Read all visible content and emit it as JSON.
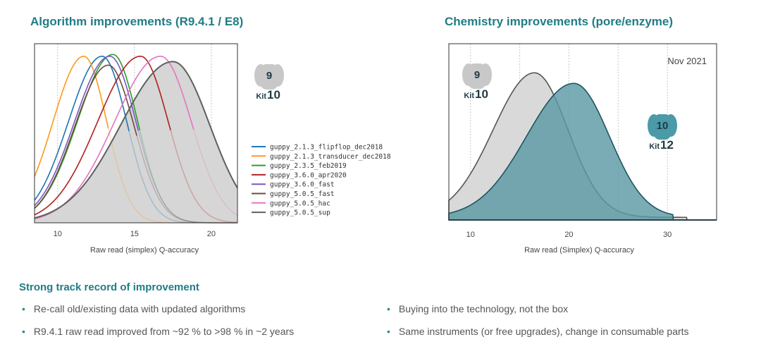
{
  "left_title": "Algorithm improvements (R9.4.1 / E8)",
  "right_title": "Chemistry improvements (pore/enzyme)",
  "left_badge": {
    "number": "9",
    "kit_word": "Kit",
    "kit_number": "10",
    "color": "#c8c8c8"
  },
  "right_badge_old": {
    "number": "9",
    "kit_word": "Kit",
    "kit_number": "10",
    "color": "#c8c8c8"
  },
  "right_badge_new": {
    "number": "10",
    "kit_word": "Kit",
    "kit_number": "12",
    "color": "#4a9aa8"
  },
  "right_annotation": "Nov 2021",
  "section_title": "Strong track record of improvement",
  "bullets_left": [
    "Re-call old/existing data with updated algorithms",
    "R9.4.1 raw read improved from ~92 % to >98 % in ~2 years"
  ],
  "bullets_right": [
    "Buying into the technology, not the box",
    "Same instruments (or free upgrades), change in consumable parts"
  ],
  "chart_data": [
    {
      "type": "line",
      "title": "Algorithm improvements (R9.4.1 / E8)",
      "xlabel": "Raw read (simplex) Q-accuracy",
      "ylabel": "",
      "xlim": [
        8.5,
        21.7
      ],
      "xticks": [
        10,
        15,
        20
      ],
      "grid": true,
      "legend_position": "right",
      "series": [
        {
          "name": "guppy_2.1.3_flipflop_dec2018",
          "color": "#1f77b4",
          "peak_x": 12.9,
          "sigma_left": 2.2,
          "sigma_right": 1.6,
          "peak": 0.93
        },
        {
          "name": "guppy_2.1.3_transducer_dec2018",
          "color": "#ff9a1f",
          "peak_x": 11.7,
          "sigma_left": 2.0,
          "sigma_right": 1.5,
          "peak": 0.93
        },
        {
          "name": "guppy_2.3.5_feb2019",
          "color": "#2ca02c",
          "peak_x": 13.6,
          "sigma_left": 2.3,
          "sigma_right": 1.6,
          "peak": 0.94
        },
        {
          "name": "guppy_3.6.0_apr2020",
          "color": "#b22222",
          "peak_x": 15.4,
          "sigma_left": 2.8,
          "sigma_right": 1.8,
          "peak": 0.93
        },
        {
          "name": "guppy_3.6.0_fast",
          "color": "#7e57c2",
          "peak_x": 13.4,
          "sigma_left": 2.3,
          "sigma_right": 1.7,
          "peak": 0.93
        },
        {
          "name": "guppy_5.0.5_fast",
          "color": "#6d4c41",
          "peak_x": 13.3,
          "sigma_left": 2.2,
          "sigma_right": 1.7,
          "peak": 0.88
        },
        {
          "name": "guppy_5.0.5_hac",
          "color": "#e377c2",
          "peak_x": 16.7,
          "sigma_left": 3.0,
          "sigma_right": 2.0,
          "peak": 0.93
        },
        {
          "name": "guppy_5.0.5_sup",
          "color": "#5f5f5f",
          "peak_x": 17.5,
          "sigma_left": 3.4,
          "sigma_right": 2.4,
          "peak": 0.9
        }
      ]
    },
    {
      "type": "area",
      "title": "Chemistry improvements (pore/enzyme)",
      "xlabel": "Raw read (Simplex) Q-accuracy",
      "ylabel": "",
      "xlim": [
        7.8,
        35
      ],
      "xticks": [
        10,
        20,
        30
      ],
      "grid": true,
      "series": [
        {
          "name": "",
          "color": "#d9d9d9",
          "peak_x": 16.5,
          "sigma_left": 4.2,
          "sigma_right": 3.4,
          "peak": 0.82
        },
        {
          "name": "",
          "color": "#5b9aa3",
          "peak_x": 20.5,
          "sigma_left": 4.8,
          "sigma_right": 3.6,
          "peak": 0.76
        }
      ]
    }
  ]
}
